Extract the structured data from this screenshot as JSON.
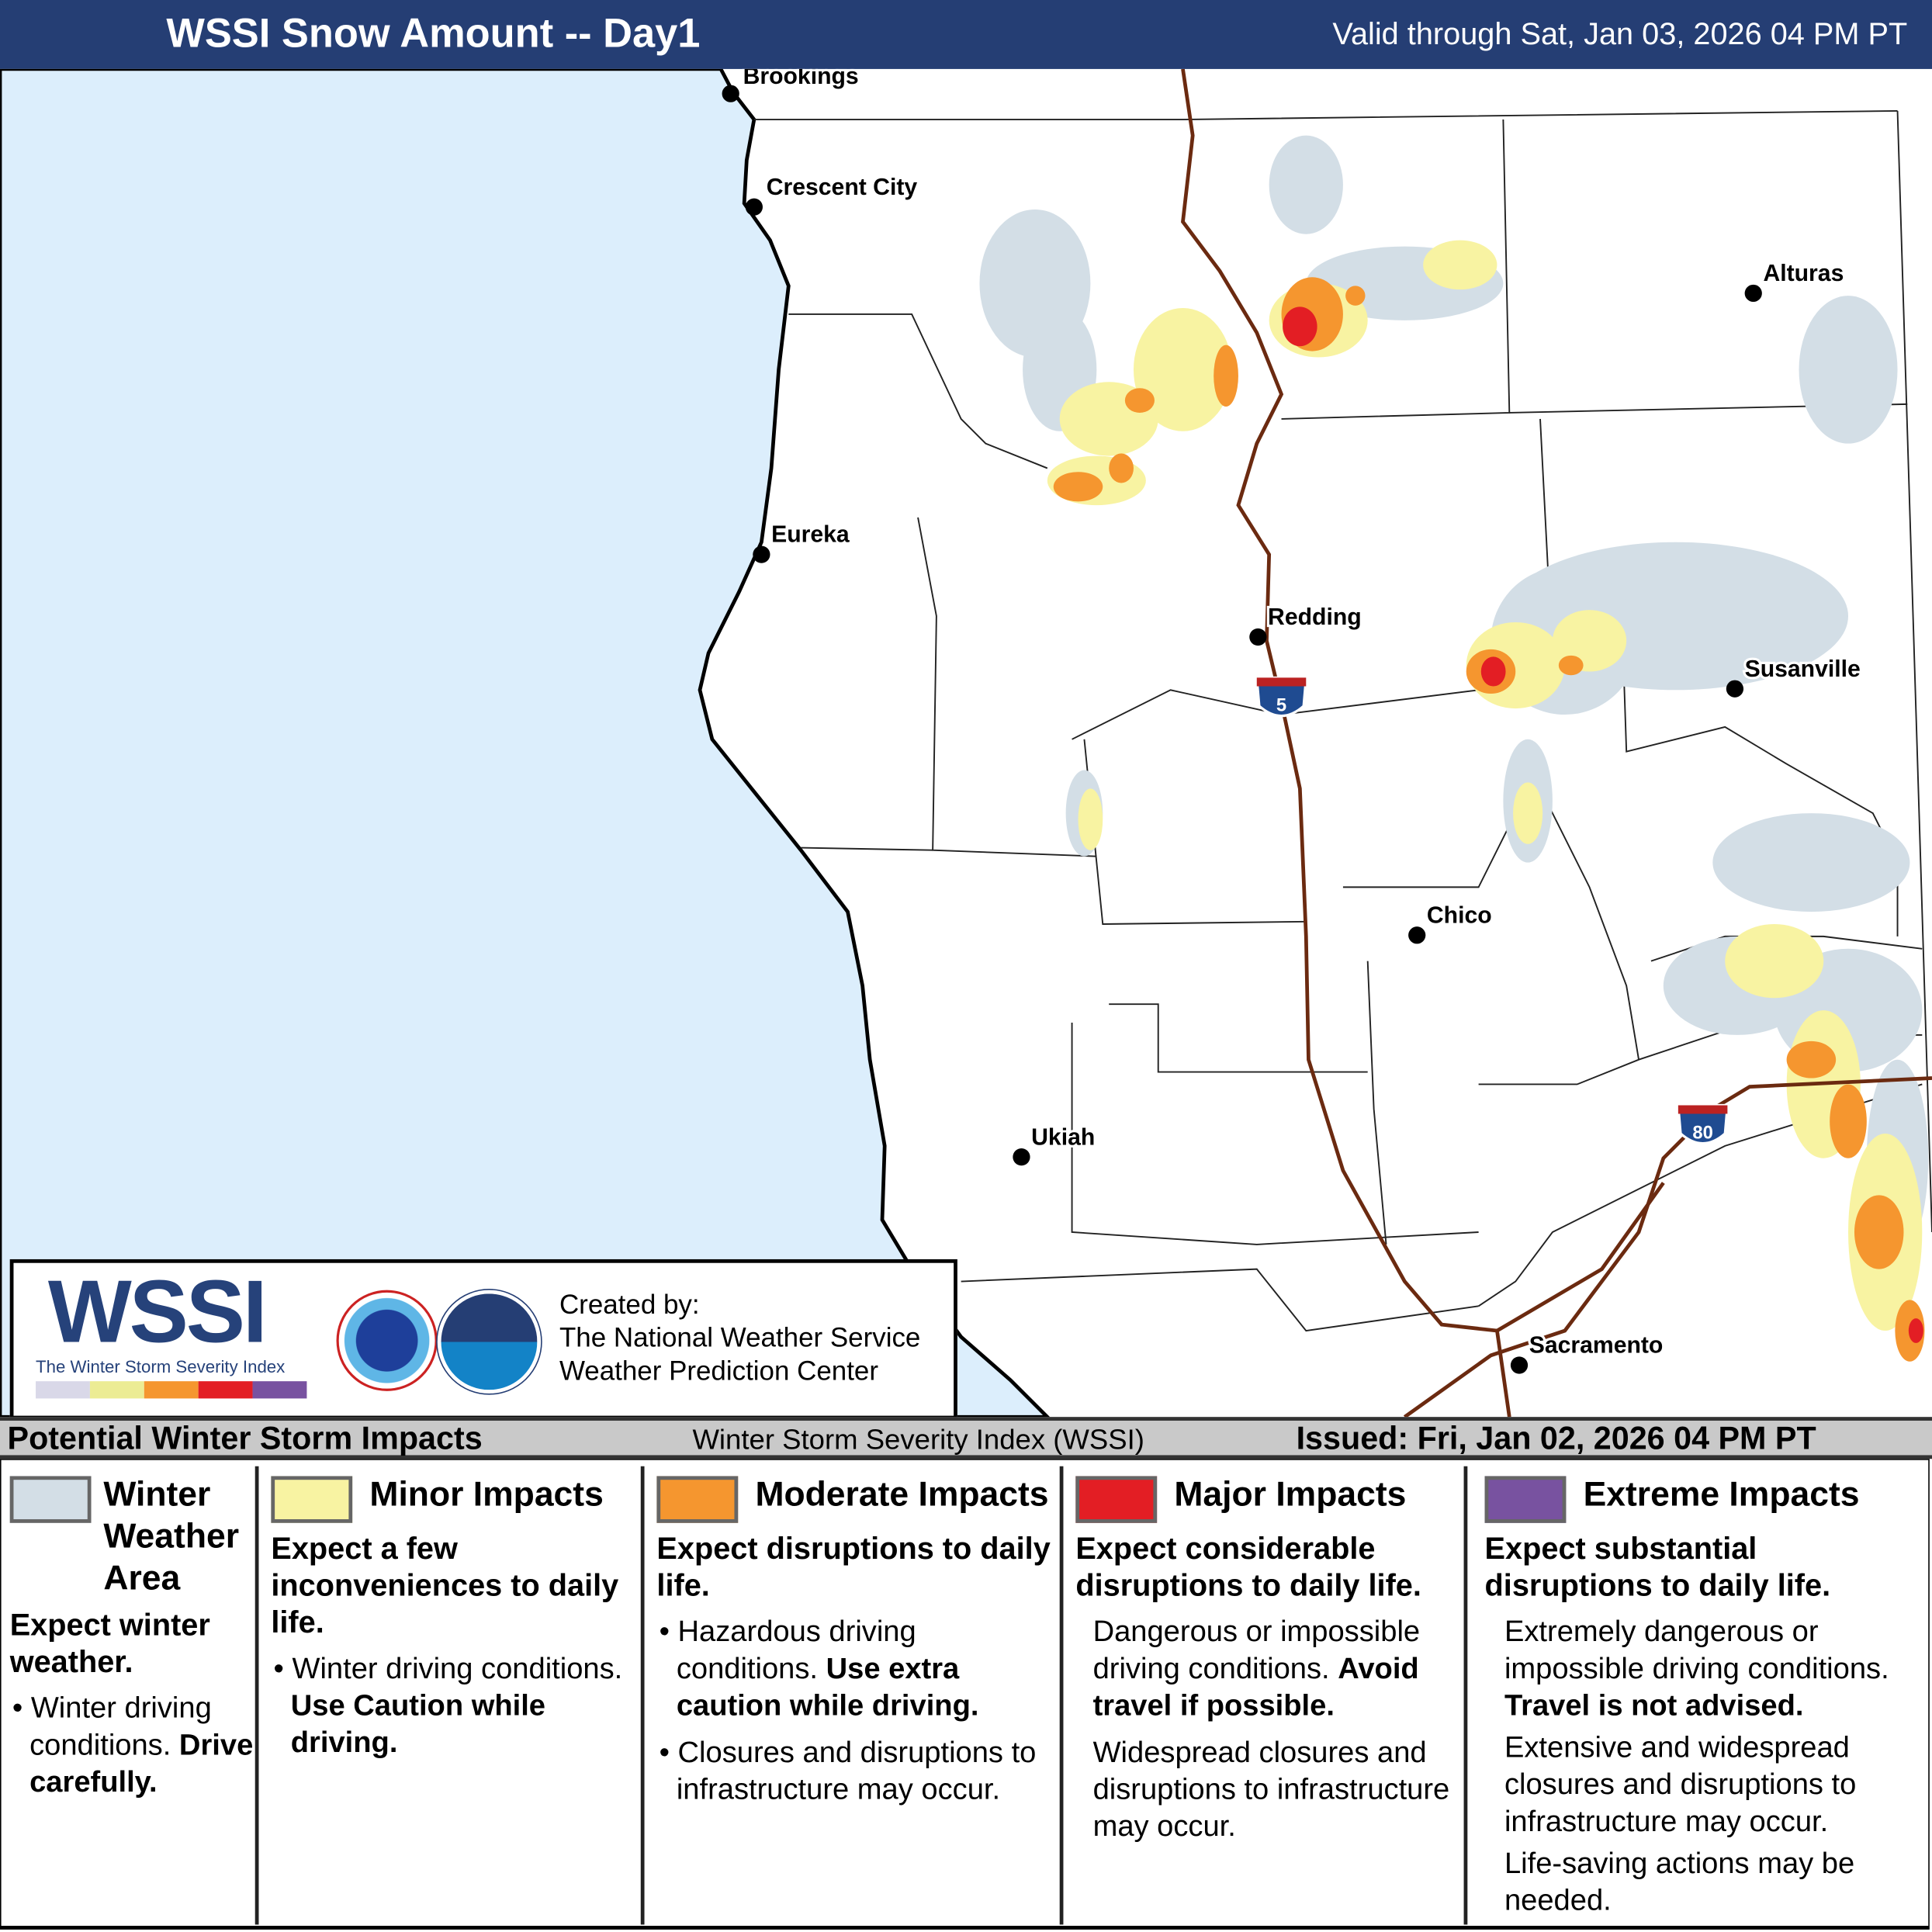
{
  "header": {
    "title": "WSSI Snow Amount -- Day1",
    "valid": "Valid through Sat, Jan 03, 2026 04 PM PT"
  },
  "colors": {
    "header_bg": "#253e74",
    "ocean": "#dceefc",
    "winter_weather_area": "#d3dee6",
    "minor": "#f8f3a2",
    "moderate": "#f5962f",
    "major": "#e31e24",
    "extreme": "#7852a0",
    "highway": "#6b2a10"
  },
  "cities": [
    {
      "name": "Brookings"
    },
    {
      "name": "Crescent City"
    },
    {
      "name": "Eureka"
    },
    {
      "name": "Alturas"
    },
    {
      "name": "Redding"
    },
    {
      "name": "Susanville"
    },
    {
      "name": "Chico"
    },
    {
      "name": "Ukiah"
    },
    {
      "name": "Sacramento"
    }
  ],
  "shields": {
    "i5": "5",
    "i80": "80"
  },
  "logo": {
    "wssi": "WSSI",
    "tm": "™",
    "subtitle": "The Winter Storm Severity Index",
    "created_by": "Created by:",
    "org1": "The National Weather Service",
    "org2": "Weather Prediction Center",
    "nws_seal": "NATIONAL WEATHER SERVICE",
    "noaa_seal": "NOAA"
  },
  "legend_bar": {
    "left": "Potential Winter Storm Impacts",
    "center": "Winter Storm Severity Index (WSSI)",
    "right": "Issued: Fri, Jan 02, 2026 04 PM PT"
  },
  "legend": [
    {
      "title": "Winter Weather Area",
      "headline": "Expect winter weather.",
      "bullet": "Winter driving conditions.",
      "bold": "Drive carefully."
    },
    {
      "title": "Minor Impacts",
      "headline": "Expect a few inconveniences to daily life.",
      "bullet": "Winter driving conditions.",
      "bold": "Use Caution while driving."
    },
    {
      "title": "Moderate Impacts",
      "headline": "Expect disruptions to daily life.",
      "bullet": "Hazardous driving conditions.",
      "bold": "Use extra caution while driving.",
      "bullet2": "Closures and disruptions to infrastructure may occur."
    },
    {
      "title": "Major Impacts",
      "headline": "Expect considerable disruptions to daily life.",
      "bullet": "Dangerous or impossible driving conditions.",
      "bold": "Avoid travel if possible.",
      "bullet2": "Widespread closures and disruptions to infrastructure may occur."
    },
    {
      "title": "Extreme Impacts",
      "headline": "Expect substantial disruptions to daily life.",
      "bullet": "Extremely dangerous or impossible driving conditions.",
      "bold": "Travel is not advised.",
      "bullet2": "Extensive and widespread closures and disruptions to infrastructure may occur.",
      "bullet3": "Life-saving actions may be needed."
    }
  ]
}
